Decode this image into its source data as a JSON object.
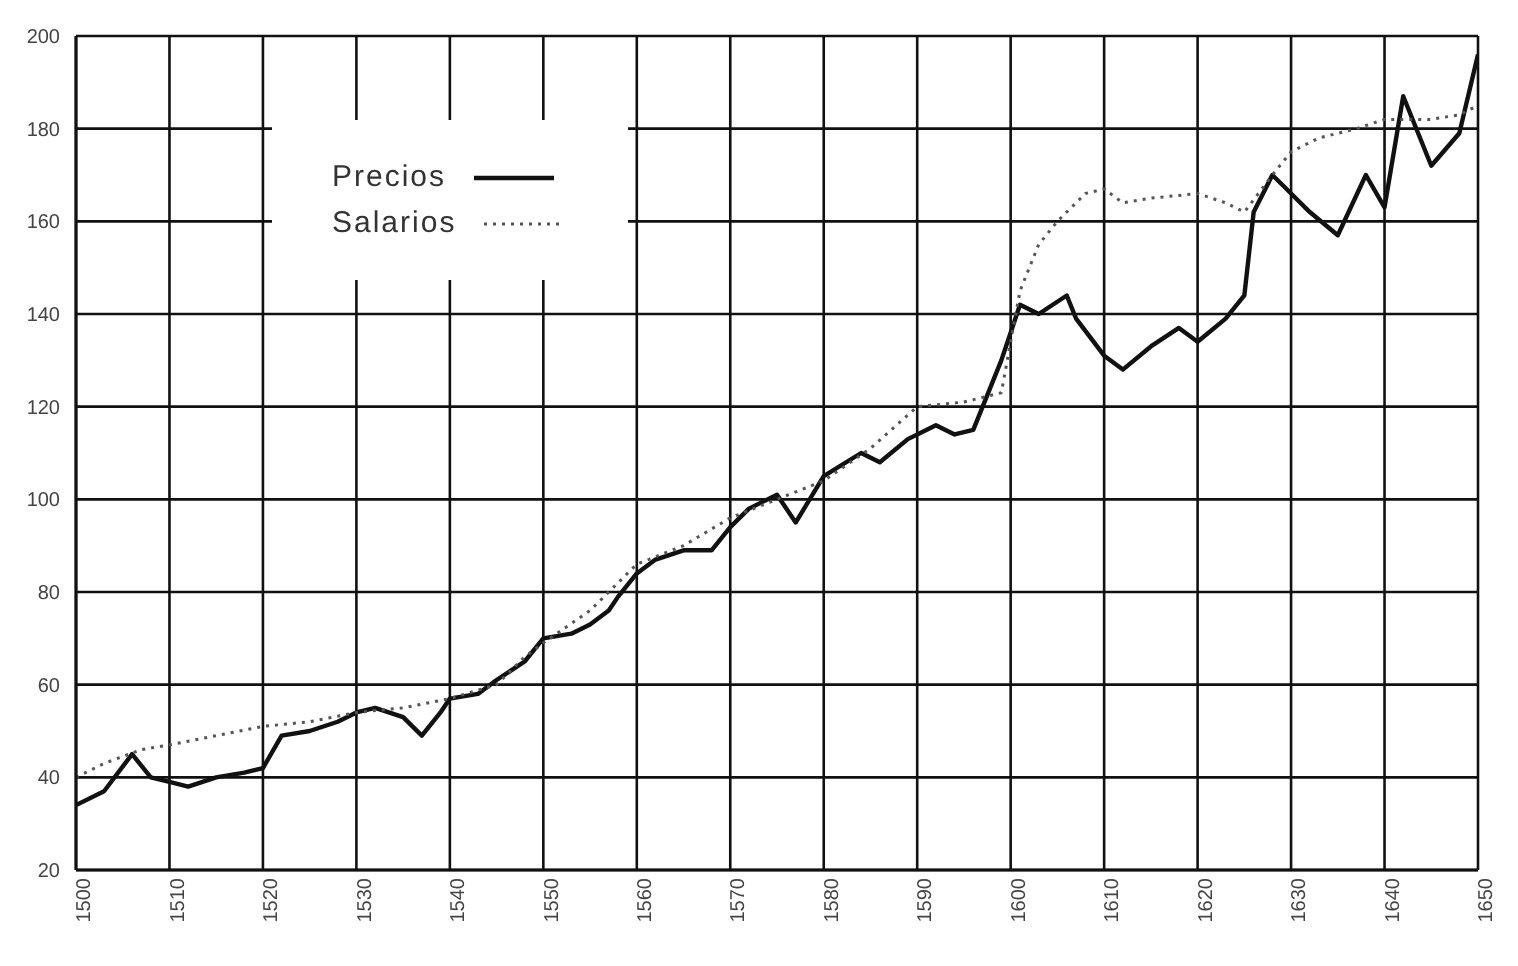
{
  "chart_data": {
    "type": "line",
    "xlim": [
      1500,
      1650
    ],
    "xticks": [
      1500,
      1510,
      1520,
      1530,
      1540,
      1550,
      1560,
      1570,
      1580,
      1590,
      1600,
      1610,
      1620,
      1630,
      1640,
      1650
    ],
    "ylim": [
      20,
      200
    ],
    "yticks": [
      20,
      40,
      60,
      80,
      100,
      120,
      140,
      160,
      180,
      200
    ],
    "grid": true,
    "legend": "top left",
    "marker": "none",
    "series": [
      {
        "name": "Precios",
        "color": "#111111",
        "line_style": "solid",
        "x": [
          1500,
          1503,
          1506,
          1508,
          1510,
          1512,
          1515,
          1518,
          1520,
          1522,
          1525,
          1528,
          1530,
          1532,
          1535,
          1537,
          1539,
          1540,
          1543,
          1545,
          1548,
          1550,
          1553,
          1555,
          1557,
          1558,
          1560,
          1562,
          1565,
          1568,
          1570,
          1572,
          1575,
          1577,
          1580,
          1584,
          1586,
          1589,
          1592,
          1594,
          1596,
          1599,
          1601,
          1603,
          1606,
          1607,
          1610,
          1612,
          1615,
          1618,
          1620,
          1623,
          1625,
          1626,
          1628,
          1630,
          1632,
          1635,
          1638,
          1640,
          1642,
          1645,
          1648,
          1650
        ],
        "values": [
          34,
          37,
          45,
          40,
          39,
          38,
          40,
          41,
          42,
          49,
          50,
          52,
          54,
          55,
          53,
          49,
          54,
          57,
          58,
          61,
          65,
          70,
          71,
          73,
          76,
          79,
          84,
          87,
          89,
          89,
          94,
          98,
          101,
          95,
          105,
          110,
          108,
          113,
          116,
          114,
          115,
          130,
          142,
          140,
          144,
          139,
          131,
          128,
          133,
          137,
          134,
          139,
          144,
          162,
          170,
          166,
          162,
          157,
          170,
          163,
          187,
          172,
          179,
          196
        ]
      },
      {
        "name": "Salarios",
        "color": "#555555",
        "line_style": "dotted",
        "x": [
          1500,
          1503,
          1507,
          1510,
          1515,
          1520,
          1525,
          1530,
          1535,
          1540,
          1545,
          1548,
          1550,
          1555,
          1558,
          1560,
          1565,
          1570,
          1575,
          1580,
          1585,
          1590,
          1595,
          1599,
          1601,
          1603,
          1605,
          1608,
          1610,
          1612,
          1615,
          1620,
          1623,
          1625,
          1628,
          1630,
          1633,
          1637,
          1640,
          1645,
          1648,
          1650
        ],
        "values": [
          40,
          43,
          46,
          47,
          49,
          51,
          52,
          54,
          55,
          57,
          60,
          66,
          69,
          76,
          82,
          86,
          90,
          96,
          100,
          104,
          111,
          120,
          121,
          123,
          145,
          155,
          160,
          166,
          167,
          164,
          165,
          166,
          164,
          162,
          170,
          175,
          178,
          180,
          182,
          182,
          183,
          185
        ]
      }
    ]
  }
}
